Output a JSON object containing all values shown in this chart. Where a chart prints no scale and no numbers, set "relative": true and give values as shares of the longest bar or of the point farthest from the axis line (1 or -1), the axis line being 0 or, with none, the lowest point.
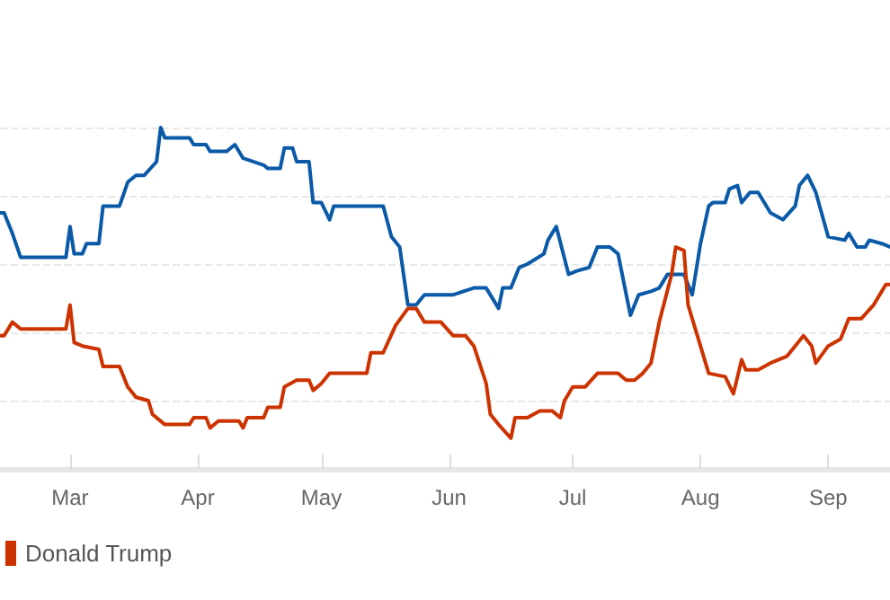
{
  "chart_data": {
    "type": "line",
    "relative": true,
    "grid": "y",
    "legend": "bottom left",
    "marker": "none",
    "xlim": [
      "--02-13",
      "--09-16"
    ],
    "xticks": [
      {
        "value": "--03-01",
        "label": "Mar"
      },
      {
        "value": "--04-01",
        "label": "Apr"
      },
      {
        "value": "--05-01",
        "label": "May"
      },
      {
        "value": "--06-01",
        "label": "Jun"
      },
      {
        "value": "--07-01",
        "label": "Jul"
      },
      {
        "value": "--08-01",
        "label": "Aug"
      },
      {
        "value": "--09-01",
        "label": "Sep"
      }
    ],
    "series": [
      {
        "color": "#0b5aa8",
        "x": [
          "--02-13",
          "--02-14",
          "--02-16",
          "--02-18",
          "--02-29",
          "--03-01",
          "--03-02",
          "--03-04",
          "--03-05",
          "--03-08",
          "--03-09",
          "--03-13",
          "--03-15",
          "--03-17",
          "--03-19",
          "--03-22",
          "--03-23",
          "--03-24",
          "--03-30",
          "--03-31",
          "--04-03",
          "--04-04",
          "--04-08",
          "--04-10",
          "--04-12",
          "--04-17",
          "--04-18",
          "--04-21",
          "--04-22",
          "--04-24",
          "--04-25",
          "--04-28",
          "--04-29",
          "--05-01",
          "--05-03",
          "--05-04",
          "--05-11",
          "--05-13",
          "--05-16",
          "--05-18",
          "--05-20",
          "--05-22",
          "--05-24",
          "--05-26",
          "--05-30",
          "--06-02",
          "--06-07",
          "--06-10",
          "--06-13",
          "--06-14",
          "--06-16",
          "--06-18",
          "--06-20",
          "--06-24",
          "--06-25",
          "--06-27",
          "--06-30",
          "--07-02",
          "--07-05",
          "--07-07",
          "--07-10",
          "--07-12",
          "--07-15",
          "--07-17",
          "--07-20",
          "--07-22",
          "--07-24",
          "--07-25",
          "--07-28",
          "--07-30",
          "--08-01",
          "--08-03",
          "--08-04",
          "--08-07",
          "--08-08",
          "--08-10",
          "--08-11",
          "--08-13",
          "--08-15",
          "--08-18",
          "--08-21",
          "--08-24",
          "--08-25",
          "--08-27",
          "--08-29",
          "--09-01",
          "--09-05",
          "--09-06",
          "--09-08",
          "--09-10",
          "--09-11",
          "--09-14",
          "--09-16"
        ],
        "values": [
          0.75,
          0.75,
          0.69,
          0.62,
          0.62,
          0.71,
          0.63,
          0.63,
          0.66,
          0.66,
          0.77,
          0.77,
          0.84,
          0.86,
          0.86,
          0.9,
          1.0,
          0.97,
          0.97,
          0.95,
          0.95,
          0.93,
          0.93,
          0.95,
          0.91,
          0.89,
          0.88,
          0.88,
          0.94,
          0.94,
          0.9,
          0.9,
          0.78,
          0.78,
          0.73,
          0.77,
          0.77,
          0.77,
          0.77,
          0.68,
          0.65,
          0.48,
          0.48,
          0.51,
          0.51,
          0.51,
          0.53,
          0.53,
          0.47,
          0.53,
          0.53,
          0.59,
          0.6,
          0.63,
          0.67,
          0.71,
          0.57,
          0.58,
          0.59,
          0.65,
          0.65,
          0.63,
          0.45,
          0.51,
          0.52,
          0.53,
          0.57,
          0.57,
          0.57,
          0.51,
          0.66,
          0.77,
          0.78,
          0.78,
          0.82,
          0.83,
          0.78,
          0.81,
          0.81,
          0.75,
          0.73,
          0.77,
          0.83,
          0.86,
          0.81,
          0.68,
          0.67,
          0.69,
          0.65,
          0.65,
          0.67,
          0.66,
          0.65
        ]
      },
      {
        "name": "Donald Trump",
        "color": "#cc3300",
        "x": [
          "--02-13",
          "--02-14",
          "--02-16",
          "--02-18",
          "--02-29",
          "--03-01",
          "--03-02",
          "--03-04",
          "--03-08",
          "--03-09",
          "--03-13",
          "--03-15",
          "--03-17",
          "--03-20",
          "--03-21",
          "--03-24",
          "--03-30",
          "--03-31",
          "--04-03",
          "--04-04",
          "--04-06",
          "--04-11",
          "--04-12",
          "--04-13",
          "--04-17",
          "--04-18",
          "--04-21",
          "--04-22",
          "--04-25",
          "--04-28",
          "--04-29",
          "--05-01",
          "--05-03",
          "--05-10",
          "--05-12",
          "--05-13",
          "--05-16",
          "--05-19",
          "--05-22",
          "--05-24",
          "--05-26",
          "--05-30",
          "--06-02",
          "--06-05",
          "--06-07",
          "--06-10",
          "--06-11",
          "--06-13",
          "--06-16",
          "--06-17",
          "--06-20",
          "--06-23",
          "--06-26",
          "--06-28",
          "--06-29",
          "--07-01",
          "--07-04",
          "--07-07",
          "--07-12",
          "--07-14",
          "--07-16",
          "--07-18",
          "--07-20",
          "--07-22",
          "--07-25",
          "--07-26",
          "--07-28",
          "--07-29",
          "--08-01",
          "--08-03",
          "--08-07",
          "--08-09",
          "--08-11",
          "--08-12",
          "--08-15",
          "--08-18",
          "--08-22",
          "--08-24",
          "--08-26",
          "--08-28",
          "--08-29",
          "--09-01",
          "--09-04",
          "--09-06",
          "--09-09",
          "--09-12",
          "--09-15",
          "--09-16"
        ],
        "values": [
          0.39,
          0.39,
          0.43,
          0.41,
          0.41,
          0.48,
          0.37,
          0.36,
          0.35,
          0.3,
          0.3,
          0.24,
          0.21,
          0.2,
          0.16,
          0.13,
          0.13,
          0.15,
          0.15,
          0.12,
          0.14,
          0.14,
          0.12,
          0.15,
          0.15,
          0.18,
          0.18,
          0.24,
          0.26,
          0.26,
          0.23,
          0.25,
          0.28,
          0.28,
          0.28,
          0.34,
          0.34,
          0.42,
          0.47,
          0.47,
          0.43,
          0.43,
          0.39,
          0.39,
          0.36,
          0.25,
          0.16,
          0.13,
          0.09,
          0.15,
          0.15,
          0.17,
          0.17,
          0.15,
          0.2,
          0.24,
          0.24,
          0.28,
          0.28,
          0.26,
          0.26,
          0.28,
          0.31,
          0.43,
          0.57,
          0.65,
          0.64,
          0.48,
          0.36,
          0.28,
          0.27,
          0.22,
          0.32,
          0.29,
          0.29,
          0.31,
          0.33,
          0.36,
          0.39,
          0.36,
          0.31,
          0.36,
          0.38,
          0.44,
          0.44,
          0.48,
          0.54,
          0.54
        ]
      }
    ]
  }
}
